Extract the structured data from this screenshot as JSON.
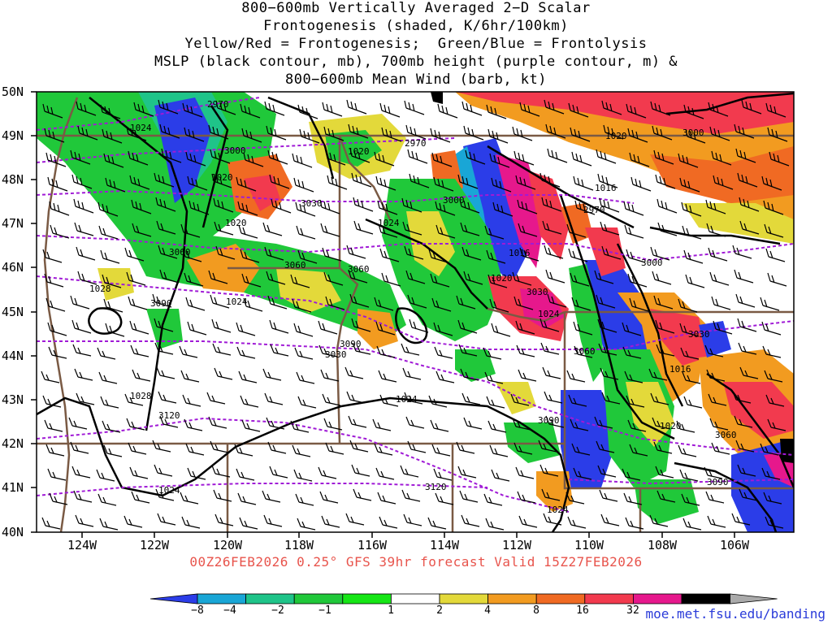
{
  "title_lines": [
    "800−600mb Vertically Averaged 2−D Scalar",
    "Frontogenesis (shaded, K/6hr/100km)",
    "Yellow/Red = Frontogenesis;  Green/Blue = Frontolysis",
    "MSLP (black contour, mb), 700mb height (purple contour, m) &",
    "800−600mb Mean Wind (barb, kt)"
  ],
  "lat_labels": [
    "50N",
    "49N",
    "48N",
    "47N",
    "46N",
    "45N",
    "44N",
    "43N",
    "42N",
    "41N",
    "40N"
  ],
  "lon_labels": [
    "124W",
    "122W",
    "120W",
    "118W",
    "116W",
    "114W",
    "112W",
    "110W",
    "108W",
    "106W"
  ],
  "valid_line": "00Z26FEB2026 0.25° GFS 39hr forecast Valid 15Z27FEB2026",
  "credit": "moe.met.fsu.edu/banding",
  "colorbar": {
    "labels": [
      "−8",
      "−4",
      "−2",
      "−1",
      "1",
      "2",
      "4",
      "8",
      "16",
      "32"
    ],
    "colors": [
      "#2b3de8",
      "#19a6d6",
      "#1fc489",
      "#20c83a",
      "#16e616",
      "#ffffff",
      "#e3d93a",
      "#f29b20",
      "#f06a23",
      "#f23a4e",
      "#e6188c",
      "#000000",
      "#aaaaaa"
    ]
  },
  "contour_labels": {
    "mslp": [
      "1024",
      "1020",
      "1028",
      "1024",
      "1020",
      "1024",
      "1028",
      "1024",
      "1024",
      "1024",
      "1024",
      "1020",
      "1016",
      "1016",
      "1020",
      "1020",
      "1020",
      "1016"
    ],
    "height": [
      "2970",
      "3000",
      "3030",
      "3060",
      "3090",
      "3090",
      "3000",
      "2970",
      "3060",
      "3030",
      "3000",
      "2970",
      "3030",
      "3060",
      "3090",
      "3090",
      "3060",
      "3120",
      "3120",
      "3000",
      "3030",
      "3060"
    ]
  },
  "colors": {
    "mslp_contour": "#000000",
    "height_contour": "#a01ad6",
    "state_border": "#7a5a44",
    "title_accent": "#e8544c",
    "credit": "#2a3bd9"
  }
}
